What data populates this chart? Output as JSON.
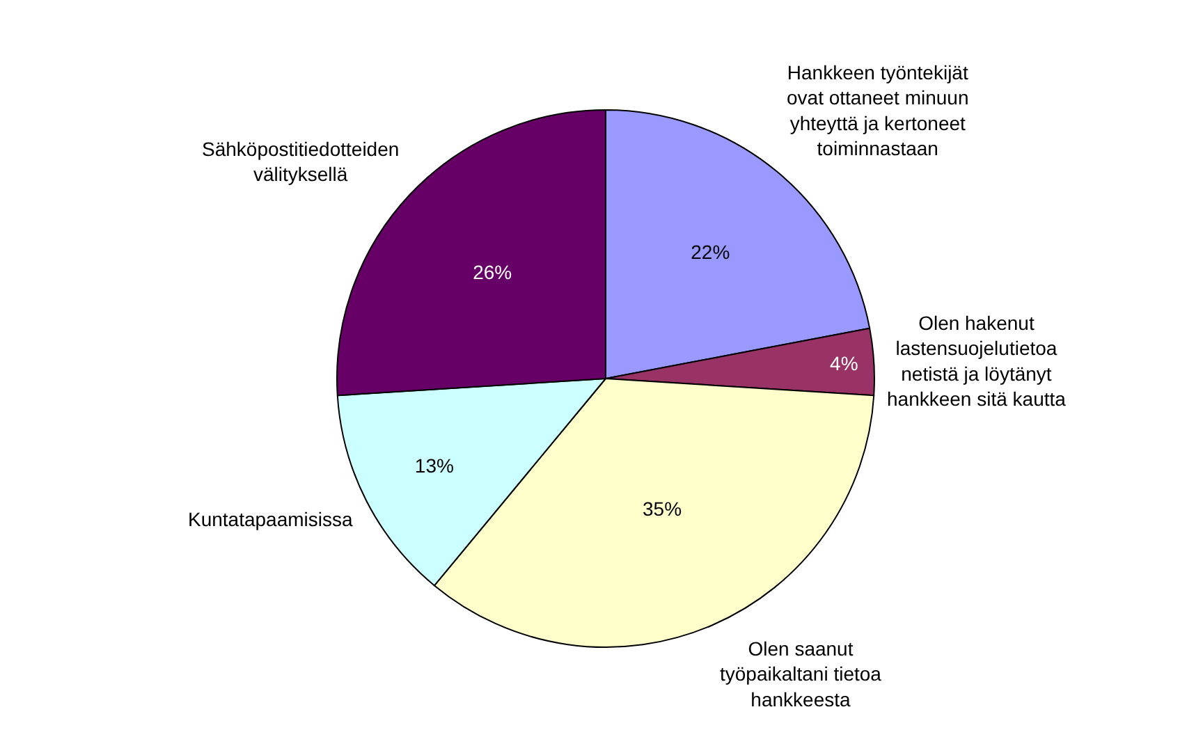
{
  "chart_data": {
    "type": "pie",
    "categories": [
      "Hankkeen työntekijät ovat ottaneet minuun yhteyttä ja kertoneet toiminnastaan",
      "Olen hakenut lastensuojelutietoa netistä ja löytänyt hankkeen sitä kautta",
      "Olen saanut työpaikaltani tietoa hankkeesta",
      "Kuntatapaamisissa",
      "Sähköpostitiedotteiden välityksellä"
    ],
    "values": [
      22,
      4,
      35,
      13,
      26
    ],
    "value_labels": [
      "22%",
      "4%",
      "35%",
      "13%",
      "26%"
    ],
    "colors": [
      "#9999ff",
      "#993366",
      "#ffffcc",
      "#ccffff",
      "#660066"
    ],
    "legend": false
  }
}
